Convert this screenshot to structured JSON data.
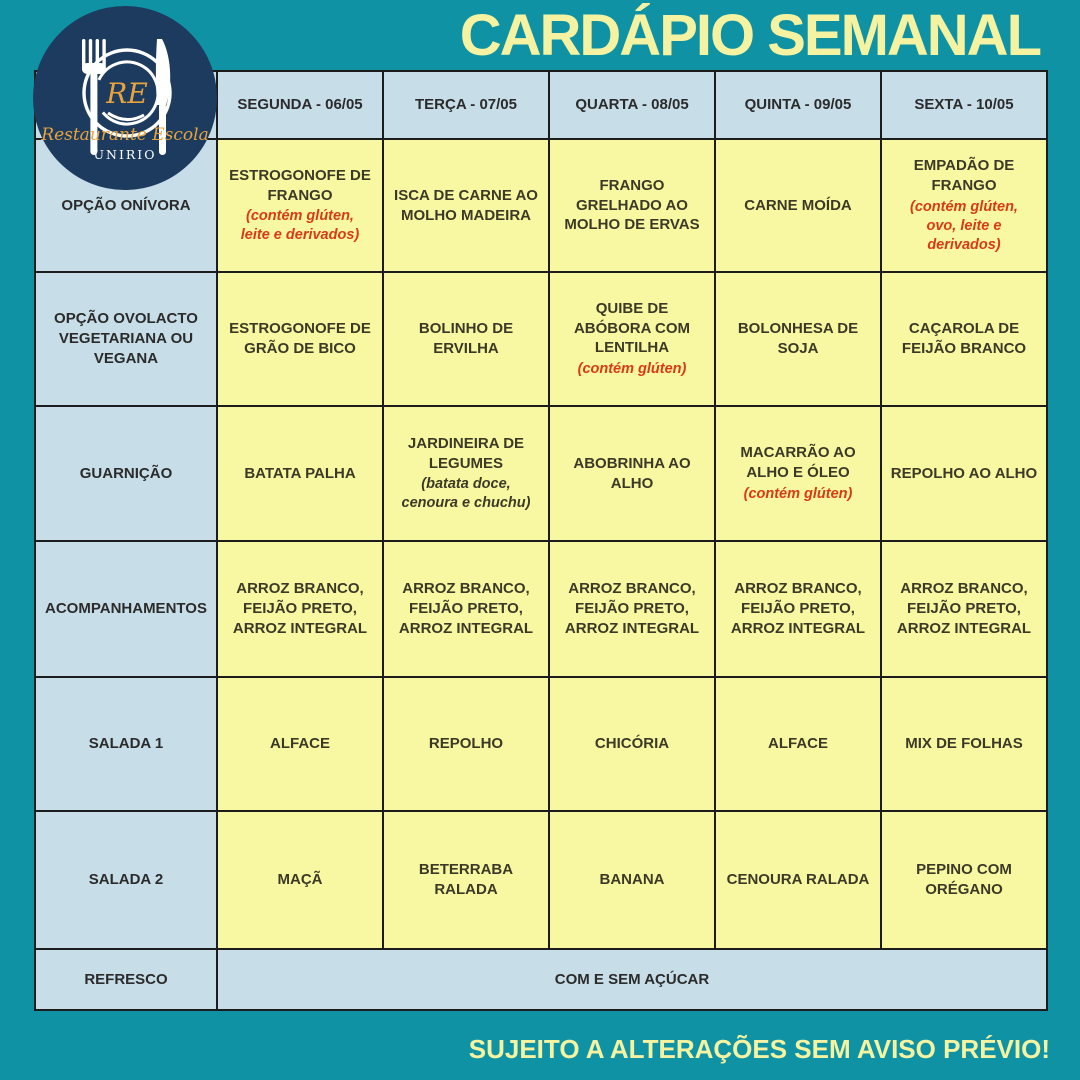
{
  "title": "CARDÁPIO SEMANAL",
  "footer": "SUJEITO A ALTERAÇÕES SEM AVISO PRÉVIO!",
  "logo": {
    "initials": "RE",
    "name": "Restaurante Escola",
    "institution": "UNIRIO"
  },
  "colors": {
    "background_teal": "#0f93a4",
    "accent_yellow_text": "#f5f3a2",
    "cell_yellow": "#f8f8a2",
    "cell_blue": "#c7dee9",
    "allergen_red": "#d93a14",
    "logo_navy": "#1c3b5e",
    "logo_orange": "#e8a33c",
    "border_black": "#1c1c1c"
  },
  "table": {
    "day_headers": [
      "SEGUNDA - 06/05",
      "TERÇA - 07/05",
      "QUARTA - 08/05",
      "QUINTA - 09/05",
      "SEXTA - 10/05"
    ],
    "rows": [
      {
        "label": "OPÇÃO ONÍVORA",
        "cells": [
          {
            "text": "ESTROGONOFE DE\nFRANGO",
            "note": "(contém glúten,\nleite e derivados)",
            "note_style": "red"
          },
          {
            "text": "ISCA DE CARNE AO\nMOLHO MADEIRA"
          },
          {
            "text": "FRANGO\nGRELHADO AO\nMOLHO DE ERVAS"
          },
          {
            "text": "CARNE MOÍDA"
          },
          {
            "text": "EMPADÃO DE\nFRANGO",
            "note": "(contém glúten,\novo, leite e\nderivados)",
            "note_style": "red"
          }
        ]
      },
      {
        "label": "OPÇÃO OVOLACTO\nVEGETARIANA OU\nVEGANA",
        "cells": [
          {
            "text": "ESTROGONOFE DE\nGRÃO DE BICO"
          },
          {
            "text": "BOLINHO DE\nERVILHA"
          },
          {
            "text": "QUIBE DE\nABÓBORA COM\nLENTILHA",
            "note": "(contém glúten)",
            "note_style": "red"
          },
          {
            "text": "BOLONHESA DE\nSOJA"
          },
          {
            "text": "CAÇAROLA DE\nFEIJÃO BRANCO"
          }
        ]
      },
      {
        "label": "GUARNIÇÃO",
        "cells": [
          {
            "text": "BATATA PALHA"
          },
          {
            "text": "JARDINEIRA DE\nLEGUMES",
            "note": "(batata doce,\ncenoura e chuchu)",
            "note_style": "dark"
          },
          {
            "text": "ABOBRINHA AO\nALHO"
          },
          {
            "text": "MACARRÃO AO\nALHO E ÓLEO",
            "note": "(contém glúten)",
            "note_style": "red"
          },
          {
            "text": "REPOLHO AO ALHO"
          }
        ]
      },
      {
        "label": "ACOMPANHAMENTOS",
        "cells": [
          {
            "text": "ARROZ BRANCO,\nFEIJÃO PRETO,\nARROZ INTEGRAL"
          },
          {
            "text": "ARROZ BRANCO,\nFEIJÃO PRETO,\nARROZ INTEGRAL"
          },
          {
            "text": "ARROZ BRANCO,\nFEIJÃO PRETO,\nARROZ INTEGRAL"
          },
          {
            "text": "ARROZ BRANCO,\nFEIJÃO PRETO,\nARROZ INTEGRAL"
          },
          {
            "text": "ARROZ BRANCO,\nFEIJÃO PRETO,\nARROZ INTEGRAL"
          }
        ]
      },
      {
        "label": "SALADA 1",
        "cells": [
          {
            "text": "ALFACE"
          },
          {
            "text": "REPOLHO"
          },
          {
            "text": "CHICÓRIA"
          },
          {
            "text": "ALFACE"
          },
          {
            "text": "MIX DE FOLHAS"
          }
        ]
      },
      {
        "label": "SALADA 2",
        "cells": [
          {
            "text": "MAÇÃ"
          },
          {
            "text": "BETERRABA\nRALADA"
          },
          {
            "text": "BANANA"
          },
          {
            "text": "CENOURA RALADA"
          },
          {
            "text": "PEPINO COM\nORÉGANO"
          }
        ]
      }
    ],
    "merged_row": {
      "label": "REFRESCO",
      "value": "COM E SEM AÇÚCAR"
    }
  }
}
